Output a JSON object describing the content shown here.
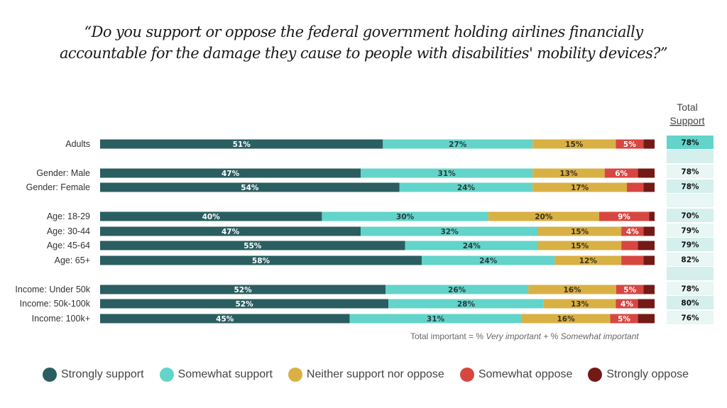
{
  "title_line1": "“Do you support or oppose the federal government holding airlines financially",
  "title_line2": "accountable for the damage they cause to people with disabilities' mobility devices?”",
  "footnote": {
    "prefix": "Total important  = % ",
    "part1": "Very important",
    "mid": " + % ",
    "part2": "Somewhat important"
  },
  "total_header": {
    "line1": "Total",
    "line2": "Support"
  },
  "colors": {
    "strongly_support": "#2a5e60",
    "somewhat_support": "#62d4ca",
    "neither": "#d9b044",
    "somewhat_oppose": "#d84641",
    "strongly_oppose": "#731a17",
    "total_highlight": "#62d4ca",
    "total_band_a": "#d4efec",
    "total_band_b": "#e8f6f4"
  },
  "chart_data": {
    "type": "bar",
    "orientation": "horizontal",
    "stacked": true,
    "title": "“Do you support or oppose the federal government holding airlines financially accountable for the damage they cause to people with disabilities' mobility devices?”",
    "xlabel": "",
    "ylabel": "",
    "xlim": [
      0,
      100
    ],
    "grid": false,
    "legend_position": "bottom",
    "categories": [
      "Adults",
      "Gender: Male",
      "Gender: Female",
      "Age: 18-29",
      "Age: 30-44",
      "Age: 45-64",
      "Age: 65+",
      "Income: Under 50k",
      "Income: 50k-100k",
      "Income: 100k+"
    ],
    "groups": [
      [
        "Adults"
      ],
      [
        "Gender: Male",
        "Gender: Female"
      ],
      [
        "Age: 18-29",
        "Age: 30-44",
        "Age: 45-64",
        "Age: 65+"
      ],
      [
        "Income: Under 50k",
        "Income: 50k-100k",
        "Income: 100k+"
      ]
    ],
    "series": [
      {
        "name": "Strongly support",
        "key": "strongly_support",
        "values": [
          51,
          47,
          54,
          40,
          47,
          55,
          58,
          52,
          52,
          45
        ],
        "labels": [
          "51%",
          "47%",
          "54%",
          "40%",
          "47%",
          "55%",
          "58%",
          "52%",
          "52%",
          "45%"
        ]
      },
      {
        "name": "Somewhat support",
        "key": "somewhat_support",
        "values": [
          27,
          31,
          24,
          30,
          32,
          24,
          24,
          26,
          28,
          31
        ],
        "labels": [
          "27%",
          "31%",
          "24%",
          "30%",
          "32%",
          "24%",
          "24%",
          "26%",
          "28%",
          "31%"
        ]
      },
      {
        "name": "Neither support nor oppose",
        "key": "neither",
        "values": [
          15,
          13,
          17,
          20,
          15,
          15,
          12,
          16,
          13,
          16
        ],
        "labels": [
          "15%",
          "13%",
          "17%",
          "20%",
          "15%",
          "15%",
          "12%",
          "16%",
          "13%",
          "16%"
        ]
      },
      {
        "name": "Somewhat oppose",
        "key": "somewhat_oppose",
        "values": [
          5,
          6,
          3,
          9,
          4,
          3,
          4,
          5,
          4,
          5
        ],
        "labels": [
          "5%",
          "6%",
          "",
          "9%",
          "4%",
          "",
          "",
          "5%",
          "4%",
          "5%"
        ]
      },
      {
        "name": "Strongly oppose",
        "key": "strongly_oppose",
        "values": [
          2,
          3,
          2,
          1,
          2,
          3,
          2,
          2,
          3,
          3
        ],
        "labels": [
          "",
          "",
          "",
          "",
          "",
          "",
          "",
          "",
          "",
          ""
        ]
      }
    ],
    "total_support": [
      "78%",
      "78%",
      "78%",
      "70%",
      "79%",
      "79%",
      "82%",
      "78%",
      "80%",
      "76%"
    ]
  },
  "legend": [
    {
      "label": "Strongly support",
      "key": "strongly_support"
    },
    {
      "label": "Somewhat support",
      "key": "somewhat_support"
    },
    {
      "label": "Neither support nor oppose",
      "key": "neither"
    },
    {
      "label": "Somewhat oppose",
      "key": "somewhat_oppose"
    },
    {
      "label": "Strongly oppose",
      "key": "strongly_oppose"
    }
  ]
}
